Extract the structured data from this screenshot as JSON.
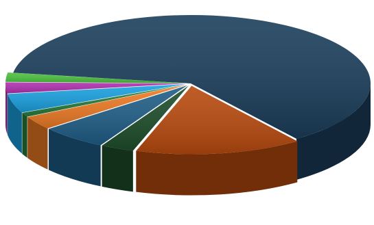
{
  "chart_data": {
    "type": "pie",
    "style": "3d-exploded",
    "title": "",
    "start_angle_deg": 189,
    "slices": [
      {
        "value": 62.5,
        "color": "#1b3e5b",
        "label": ""
      },
      {
        "value": 15.0,
        "color": "#b84a0e",
        "label": ""
      },
      {
        "value": 3.0,
        "color": "#1d4d2a",
        "label": ""
      },
      {
        "value": 6.0,
        "color": "#1f5e87",
        "label": ""
      },
      {
        "value": 3.2,
        "color": "#ee7b25",
        "label": ""
      },
      {
        "value": 1.0,
        "color": "#2a7d3b",
        "label": ""
      },
      {
        "value": 4.5,
        "color": "#1aa1e0",
        "label": ""
      },
      {
        "value": 2.6,
        "color": "#b030b0",
        "label": ""
      },
      {
        "value": 2.2,
        "color": "#4cc23f",
        "label": ""
      }
    ]
  }
}
